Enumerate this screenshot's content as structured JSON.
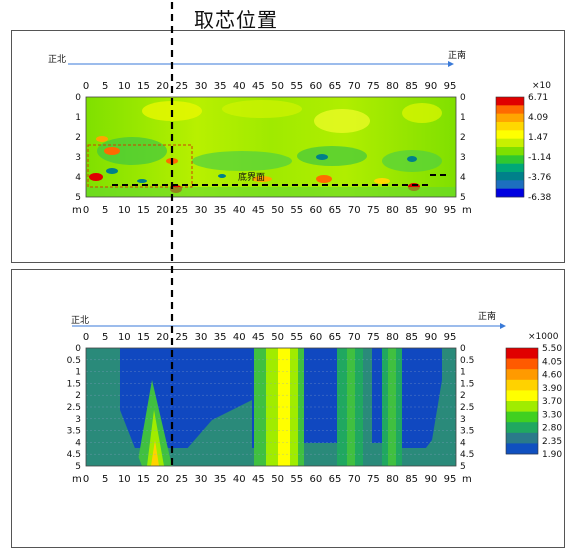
{
  "title": "取芯位置",
  "top_panel": {
    "north_label": "正北",
    "south_label": "正南",
    "x_ticks": [
      "0",
      "5",
      "10",
      "15",
      "20",
      "25",
      "30",
      "35",
      "40",
      "45",
      "50",
      "55",
      "60",
      "65",
      "70",
      "75",
      "80",
      "85",
      "90",
      "95"
    ],
    "y_ticks": [
      "0",
      "1",
      "2",
      "3",
      "4",
      "5"
    ],
    "unit_label": "m",
    "interface_label": "底界面",
    "scale_multiplier": "×10",
    "legend_values": [
      "6.71",
      "4.09",
      "1.47",
      "-1.14",
      "-3.76",
      "-6.38"
    ],
    "legend_colors": [
      "#e00000",
      "#ff6a00",
      "#ffa500",
      "#ffd700",
      "#ffff00",
      "#c8f000",
      "#7fe000",
      "#30c830",
      "#00a878",
      "#00808a",
      "#1d6fbf",
      "#0000e0"
    ]
  },
  "bottom_panel": {
    "north_label": "正北",
    "south_label": "正南",
    "x_ticks": [
      "0",
      "5",
      "10",
      "15",
      "20",
      "25",
      "30",
      "35",
      "40",
      "45",
      "50",
      "55",
      "60",
      "65",
      "70",
      "75",
      "80",
      "85",
      "90",
      "95"
    ],
    "y_ticks": [
      "0",
      "0.5",
      "1",
      "1.5",
      "2",
      "2.5",
      "3",
      "3.5",
      "4",
      "4.5",
      "5"
    ],
    "unit_label": "m",
    "scale_multiplier": "×1000",
    "legend_values": [
      "5.50",
      "4.05",
      "4.60",
      "3.90",
      "3.70",
      "3.30",
      "2.80",
      "2.35",
      "1.90"
    ],
    "legend_colors": [
      "#e00000",
      "#ff5a00",
      "#ff9a00",
      "#ffd200",
      "#ffff00",
      "#a0ec00",
      "#40d020",
      "#20a860",
      "#2a7a8a",
      "#1050c0"
    ]
  },
  "colors": {
    "deep_blue": "#1048c0",
    "teal": "#2a8a7a",
    "green": "#40c040",
    "yellow": "#ffff00",
    "arrow": "#3a7ad8"
  }
}
